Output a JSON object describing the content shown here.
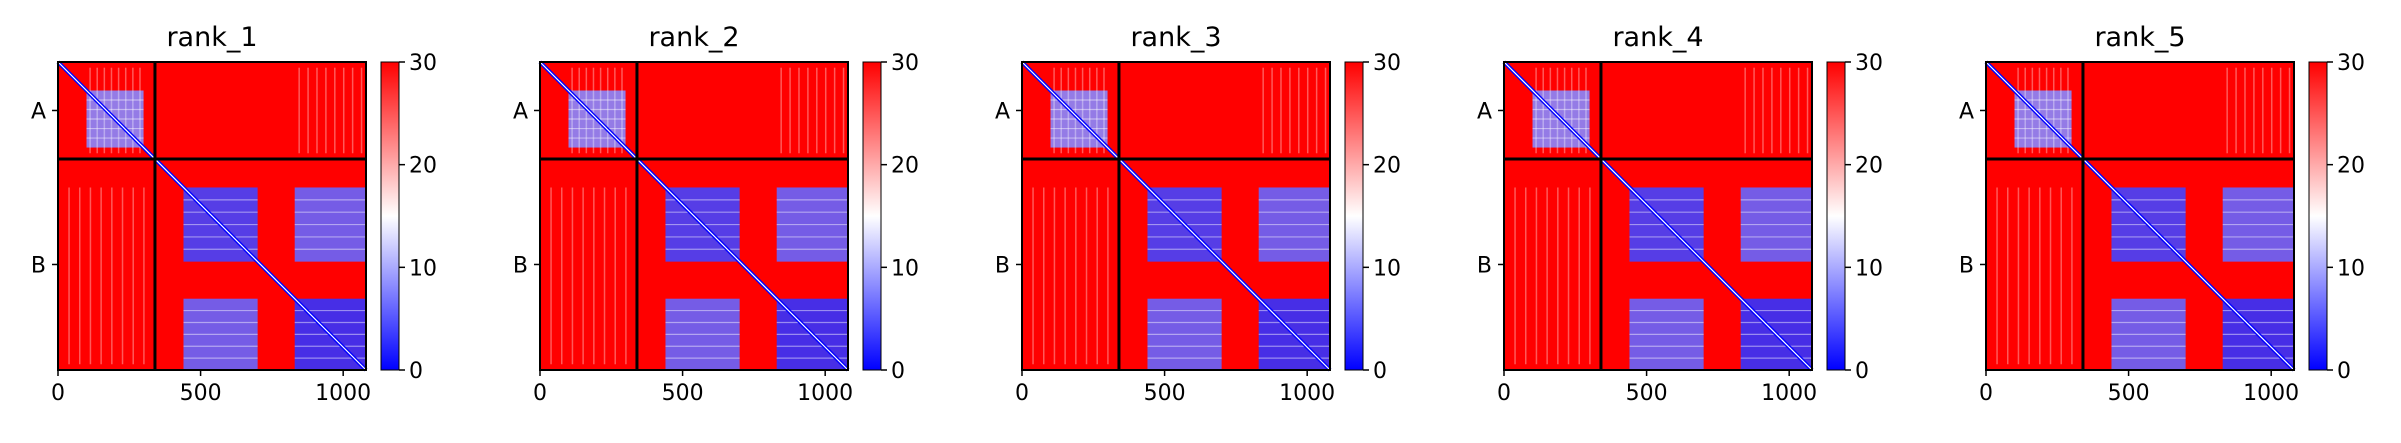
{
  "figure": {
    "colormap": {
      "low": "#0000ff",
      "mid": "#ffffff",
      "high": "#ff0000"
    }
  },
  "chart_data": [
    {
      "type": "heatmap",
      "title": "rank_1",
      "xlabel": "",
      "ylabel": "",
      "xlim": [
        0,
        1080
      ],
      "x_ticks": [
        "0",
        "500",
        "1000"
      ],
      "x_tick_values": [
        0,
        500,
        1000
      ],
      "y_tick_labels": [
        "A",
        "B"
      ],
      "y_tick_values": [
        170,
        710
      ],
      "chain_boundary": 340,
      "colorbar": {
        "min": 0,
        "max": 30,
        "ticks": [
          "0",
          "10",
          "20",
          "30"
        ]
      },
      "blue_blocks": [
        {
          "x": [
            100,
            300
          ],
          "y": [
            100,
            300
          ],
          "value": 8
        },
        {
          "x": [
            440,
            700
          ],
          "y": [
            440,
            700
          ],
          "value": 4
        },
        {
          "x": [
            830,
            1080
          ],
          "y": [
            830,
            1080
          ],
          "value": 3
        },
        {
          "x": [
            440,
            700
          ],
          "y": [
            830,
            1080
          ],
          "value": 6
        },
        {
          "x": [
            830,
            1080
          ],
          "y": [
            440,
            700
          ],
          "value": 6
        }
      ]
    },
    {
      "type": "heatmap",
      "title": "rank_2",
      "xlabel": "",
      "ylabel": "",
      "xlim": [
        0,
        1080
      ],
      "x_ticks": [
        "0",
        "500",
        "1000"
      ],
      "x_tick_values": [
        0,
        500,
        1000
      ],
      "y_tick_labels": [
        "A",
        "B"
      ],
      "y_tick_values": [
        170,
        710
      ],
      "chain_boundary": 340,
      "colorbar": {
        "min": 0,
        "max": 30,
        "ticks": [
          "0",
          "10",
          "20",
          "30"
        ]
      },
      "blue_blocks": [
        {
          "x": [
            100,
            300
          ],
          "y": [
            100,
            300
          ],
          "value": 8
        },
        {
          "x": [
            440,
            700
          ],
          "y": [
            440,
            700
          ],
          "value": 4
        },
        {
          "x": [
            830,
            1080
          ],
          "y": [
            830,
            1080
          ],
          "value": 3
        },
        {
          "x": [
            440,
            700
          ],
          "y": [
            830,
            1080
          ],
          "value": 6
        },
        {
          "x": [
            830,
            1080
          ],
          "y": [
            440,
            700
          ],
          "value": 6
        }
      ]
    },
    {
      "type": "heatmap",
      "title": "rank_3",
      "xlabel": "",
      "ylabel": "",
      "xlim": [
        0,
        1080
      ],
      "x_ticks": [
        "0",
        "500",
        "1000"
      ],
      "x_tick_values": [
        0,
        500,
        1000
      ],
      "y_tick_labels": [
        "A",
        "B"
      ],
      "y_tick_values": [
        170,
        710
      ],
      "chain_boundary": 340,
      "colorbar": {
        "min": 0,
        "max": 30,
        "ticks": [
          "0",
          "10",
          "20",
          "30"
        ]
      },
      "blue_blocks": [
        {
          "x": [
            100,
            300
          ],
          "y": [
            100,
            300
          ],
          "value": 8
        },
        {
          "x": [
            440,
            700
          ],
          "y": [
            440,
            700
          ],
          "value": 4
        },
        {
          "x": [
            830,
            1080
          ],
          "y": [
            830,
            1080
          ],
          "value": 3
        },
        {
          "x": [
            440,
            700
          ],
          "y": [
            830,
            1080
          ],
          "value": 6
        },
        {
          "x": [
            830,
            1080
          ],
          "y": [
            440,
            700
          ],
          "value": 6
        }
      ]
    },
    {
      "type": "heatmap",
      "title": "rank_4",
      "xlabel": "",
      "ylabel": "",
      "xlim": [
        0,
        1080
      ],
      "x_ticks": [
        "0",
        "500",
        "1000"
      ],
      "x_tick_values": [
        0,
        500,
        1000
      ],
      "y_tick_labels": [
        "A",
        "B"
      ],
      "y_tick_values": [
        170,
        710
      ],
      "chain_boundary": 340,
      "colorbar": {
        "min": 0,
        "max": 30,
        "ticks": [
          "0",
          "10",
          "20",
          "30"
        ]
      },
      "blue_blocks": [
        {
          "x": [
            100,
            300
          ],
          "y": [
            100,
            300
          ],
          "value": 8
        },
        {
          "x": [
            440,
            700
          ],
          "y": [
            440,
            700
          ],
          "value": 4
        },
        {
          "x": [
            830,
            1080
          ],
          "y": [
            830,
            1080
          ],
          "value": 3
        },
        {
          "x": [
            440,
            700
          ],
          "y": [
            830,
            1080
          ],
          "value": 6
        },
        {
          "x": [
            830,
            1080
          ],
          "y": [
            440,
            700
          ],
          "value": 6
        }
      ]
    },
    {
      "type": "heatmap",
      "title": "rank_5",
      "xlabel": "",
      "ylabel": "",
      "xlim": [
        0,
        1080
      ],
      "x_ticks": [
        "0",
        "500",
        "1000"
      ],
      "x_tick_values": [
        0,
        500,
        1000
      ],
      "y_tick_labels": [
        "A",
        "B"
      ],
      "y_tick_values": [
        170,
        710
      ],
      "chain_boundary": 340,
      "colorbar": {
        "min": 0,
        "max": 30,
        "ticks": [
          "0",
          "10",
          "20",
          "30"
        ]
      },
      "blue_blocks": [
        {
          "x": [
            100,
            300
          ],
          "y": [
            100,
            300
          ],
          "value": 8
        },
        {
          "x": [
            440,
            700
          ],
          "y": [
            440,
            700
          ],
          "value": 4
        },
        {
          "x": [
            830,
            1080
          ],
          "y": [
            830,
            1080
          ],
          "value": 3
        },
        {
          "x": [
            440,
            700
          ],
          "y": [
            830,
            1080
          ],
          "value": 6
        },
        {
          "x": [
            830,
            1080
          ],
          "y": [
            440,
            700
          ],
          "value": 6
        }
      ]
    }
  ]
}
